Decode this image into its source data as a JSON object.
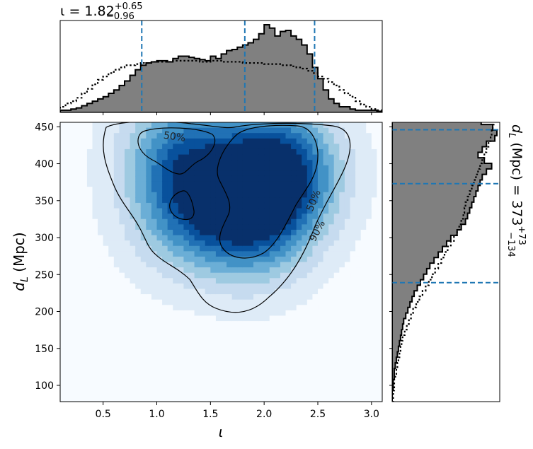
{
  "chart_data": [
    {
      "type": "heatmap",
      "panel": "joint",
      "xlabel": "ι",
      "ylabel_main": "d",
      "ylabel_sub": "L",
      "ylabel_unit": "(Mpc)",
      "xlim": [
        0.1,
        3.1
      ],
      "ylim": [
        78,
        456
      ],
      "xticks": [
        0.5,
        1.0,
        1.5,
        2.0,
        2.5,
        3.0
      ],
      "xtick_labels": [
        "0.5",
        "1.0",
        "1.5",
        "2.0",
        "2.5",
        "3.0"
      ],
      "yticks": [
        100,
        150,
        200,
        250,
        300,
        350,
        400,
        450
      ],
      "ytick_labels": [
        "100",
        "150",
        "200",
        "250",
        "300",
        "350",
        "400",
        "450"
      ],
      "colormap": "Blues",
      "density_peaks": [
        {
          "x": 2.15,
          "y": 390,
          "weight": 1.0
        },
        {
          "x": 1.2,
          "y": 420,
          "weight": 0.55
        },
        {
          "x": 1.9,
          "y": 320,
          "weight": 0.6
        },
        {
          "x": 1.25,
          "y": 335,
          "weight": 0.45
        },
        {
          "x": 1.6,
          "y": 360,
          "weight": 0.35
        }
      ],
      "contours": [
        {
          "label": "50%",
          "level": 0.5
        },
        {
          "label": "90%",
          "level": 0.9
        }
      ],
      "contour_labels": [
        "50%",
        "50%",
        "90%"
      ]
    },
    {
      "type": "bar",
      "panel": "top-marginal",
      "title_prefix": "ι = 1.82",
      "title_sup": "+0.65",
      "title_sub": "−0.96",
      "median": 1.82,
      "lower": 0.86,
      "upper": 2.47,
      "bin_edges_start": 0.1,
      "bin_width": 0.05,
      "posterior": [
        0.02,
        0.02,
        0.03,
        0.04,
        0.06,
        0.08,
        0.1,
        0.12,
        0.14,
        0.17,
        0.2,
        0.24,
        0.28,
        0.33,
        0.38,
        0.42,
        0.44,
        0.45,
        0.46,
        0.46,
        0.45,
        0.48,
        0.5,
        0.5,
        0.49,
        0.48,
        0.47,
        0.46,
        0.5,
        0.48,
        0.52,
        0.55,
        0.56,
        0.58,
        0.6,
        0.62,
        0.65,
        0.7,
        0.78,
        0.75,
        0.68,
        0.72,
        0.73,
        0.68,
        0.65,
        0.6,
        0.52,
        0.4,
        0.3,
        0.2,
        0.12,
        0.08,
        0.05,
        0.05,
        0.03,
        0.02,
        0.02,
        0.02,
        0.02,
        0.01
      ],
      "prior": [
        0.05,
        0.08,
        0.1,
        0.13,
        0.17,
        0.21,
        0.25,
        0.29,
        0.32,
        0.35,
        0.38,
        0.4,
        0.42,
        0.42,
        0.43,
        0.44,
        0.44,
        0.45,
        0.45,
        0.45,
        0.45,
        0.46,
        0.46,
        0.46,
        0.46,
        0.46,
        0.45,
        0.45,
        0.46,
        0.46,
        0.45,
        0.45,
        0.45,
        0.45,
        0.44,
        0.44,
        0.44,
        0.44,
        0.43,
        0.43,
        0.43,
        0.42,
        0.42,
        0.41,
        0.4,
        0.39,
        0.37,
        0.35,
        0.32,
        0.3,
        0.27,
        0.24,
        0.2,
        0.17,
        0.14,
        0.1,
        0.07,
        0.05,
        0.03,
        0.02
      ]
    },
    {
      "type": "bar",
      "panel": "right-marginal",
      "orientation": "horizontal",
      "side_label_main": "d",
      "side_label_sub": "L",
      "side_label_rest": " (Mpc) = 373",
      "side_label_sup": "+73",
      "side_label_subscript": "−134",
      "median": 373,
      "lower": 239,
      "upper": 446,
      "bin_edges_start": 78,
      "bin_width": 7.5,
      "posterior": [
        0.0,
        0.0,
        0.01,
        0.01,
        0.02,
        0.02,
        0.03,
        0.04,
        0.05,
        0.06,
        0.07,
        0.08,
        0.09,
        0.1,
        0.11,
        0.13,
        0.15,
        0.17,
        0.19,
        0.21,
        0.24,
        0.27,
        0.3,
        0.33,
        0.36,
        0.4,
        0.44,
        0.48,
        0.52,
        0.56,
        0.62,
        0.66,
        0.7,
        0.72,
        0.74,
        0.76,
        0.78,
        0.8,
        0.82,
        0.84,
        0.86,
        0.9,
        0.95,
        0.88,
        0.82,
        0.86,
        0.9,
        0.98,
        1.0,
        0.96,
        0.85
      ],
      "prior": [
        0.01,
        0.01,
        0.02,
        0.02,
        0.03,
        0.04,
        0.05,
        0.06,
        0.07,
        0.08,
        0.09,
        0.1,
        0.12,
        0.14,
        0.16,
        0.18,
        0.2,
        0.23,
        0.26,
        0.29,
        0.32,
        0.35,
        0.38,
        0.41,
        0.44,
        0.47,
        0.5,
        0.53,
        0.56,
        0.59,
        0.62,
        0.64,
        0.66,
        0.68,
        0.69,
        0.7,
        0.72,
        0.74,
        0.76,
        0.78,
        0.8,
        0.82,
        0.84,
        0.86,
        0.88,
        0.9,
        0.92,
        0.94,
        0.95,
        0.96,
        0.97
      ]
    }
  ]
}
